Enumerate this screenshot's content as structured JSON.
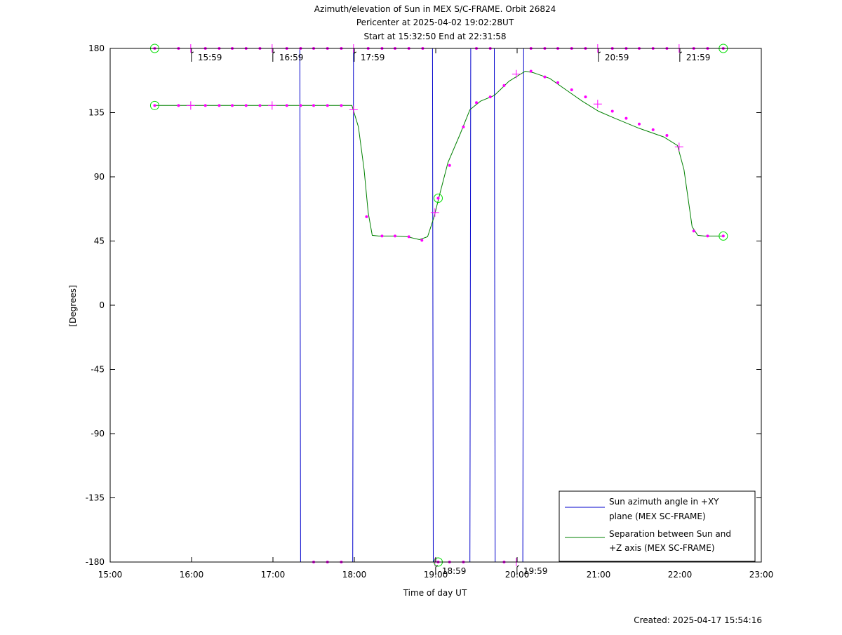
{
  "chart_data": {
    "type": "line",
    "title_lines": [
      "Azimuth/elevation of Sun in MEX S/C-FRAME.  Orbit 26824",
      "Pericenter at 2025-04-02 19:02:28UT",
      "Start at 15:32:50 End at 22:31:58"
    ],
    "xlabel": "Time of day UT",
    "ylabel": "[Degrees]",
    "footer": "Created: 2025-04-17 15:54:16",
    "xlim": [
      15.0,
      23.0
    ],
    "ylim": [
      -180,
      180
    ],
    "x_ticks": [
      {
        "v": 15,
        "label": "15:00"
      },
      {
        "v": 16,
        "label": "16:00"
      },
      {
        "v": 17,
        "label": "17:00"
      },
      {
        "v": 18,
        "label": "18:00"
      },
      {
        "v": 19,
        "label": "19:00"
      },
      {
        "v": 20,
        "label": "20:00"
      },
      {
        "v": 21,
        "label": "21:00"
      },
      {
        "v": 22,
        "label": "22:00"
      },
      {
        "v": 23,
        "label": "23:00"
      }
    ],
    "y_ticks": [
      {
        "v": 180,
        "label": "180"
      },
      {
        "v": 135,
        "label": "135"
      },
      {
        "v": 90,
        "label": "90"
      },
      {
        "v": 45,
        "label": "45"
      },
      {
        "v": 0,
        "label": "0"
      },
      {
        "v": -45,
        "label": "-45"
      },
      {
        "v": -90,
        "label": "-90"
      },
      {
        "v": -135,
        "label": "-135"
      },
      {
        "v": -180,
        "label": "-180"
      }
    ],
    "series": [
      {
        "name": "Sun azimuth angle in +XY plane (MEX SC-FRAME)",
        "legend_lines": [
          "Sun azimuth angle in +XY",
          "plane (MEX SC-FRAME)"
        ],
        "color": "#0000cc",
        "x": [
          15.547,
          17.33,
          17.34,
          17.98,
          17.99,
          18.96,
          18.97,
          19.42,
          19.43,
          19.72,
          19.73,
          20.07,
          20.08,
          22.533
        ],
        "y": [
          180,
          180,
          -180,
          -180,
          180,
          180,
          -180,
          -180,
          180,
          180,
          -180,
          -180,
          180,
          180
        ]
      },
      {
        "name": "Separation between Sun and +Z axis (MEX SC-FRAME)",
        "legend_lines": [
          "Separation between Sun and",
          "+Z axis (MEX SC-FRAME)"
        ],
        "color": "#008000",
        "x": [
          15.547,
          16.0,
          16.5,
          17.0,
          17.5,
          17.97,
          18.05,
          18.12,
          18.17,
          18.22,
          18.3,
          18.5,
          18.65,
          18.8,
          18.9,
          18.98,
          19.05,
          19.15,
          19.3,
          19.42,
          19.55,
          19.72,
          19.9,
          20.1,
          20.2,
          20.4,
          20.6,
          20.8,
          21.0,
          21.2,
          21.5,
          21.8,
          21.97,
          22.05,
          22.1,
          22.15,
          22.22,
          22.3,
          22.533
        ],
        "y": [
          140,
          140,
          140,
          140,
          140,
          140,
          125,
          95,
          65,
          49,
          48.5,
          48.5,
          48,
          46,
          48,
          62,
          78,
          100,
          120,
          137,
          143,
          147,
          157,
          164,
          163,
          159,
          151,
          143,
          136,
          131,
          124,
          118,
          112,
          95,
          75,
          55,
          49,
          48.5,
          48.5
        ]
      }
    ],
    "markers": {
      "dots": [
        [
          15.84,
          180
        ],
        [
          16.17,
          180
        ],
        [
          16.34,
          180
        ],
        [
          16.5,
          180
        ],
        [
          16.67,
          180
        ],
        [
          16.84,
          180
        ],
        [
          17.17,
          180
        ],
        [
          17.34,
          180
        ],
        [
          17.5,
          180
        ],
        [
          17.67,
          180
        ],
        [
          17.84,
          180
        ],
        [
          18.17,
          180
        ],
        [
          18.34,
          180
        ],
        [
          18.5,
          180
        ],
        [
          18.67,
          180
        ],
        [
          18.84,
          180
        ],
        [
          19.5,
          180
        ],
        [
          19.67,
          180
        ],
        [
          20.17,
          180
        ],
        [
          20.34,
          180
        ],
        [
          20.5,
          180
        ],
        [
          20.67,
          180
        ],
        [
          20.84,
          180
        ],
        [
          21.17,
          180
        ],
        [
          21.34,
          180
        ],
        [
          21.5,
          180
        ],
        [
          21.67,
          180
        ],
        [
          21.84,
          180
        ],
        [
          22.17,
          180
        ],
        [
          22.34,
          180
        ],
        [
          15.84,
          140
        ],
        [
          16.17,
          140
        ],
        [
          16.34,
          140
        ],
        [
          16.5,
          140
        ],
        [
          16.67,
          140
        ],
        [
          16.84,
          140
        ],
        [
          17.17,
          140
        ],
        [
          17.34,
          140
        ],
        [
          17.5,
          140
        ],
        [
          17.67,
          140
        ],
        [
          17.84,
          140
        ],
        [
          18.15,
          62
        ],
        [
          18.34,
          48.5
        ],
        [
          18.5,
          48.5
        ],
        [
          18.67,
          48
        ],
        [
          18.83,
          45.5
        ],
        [
          19.17,
          98
        ],
        [
          19.34,
          125
        ],
        [
          19.5,
          142
        ],
        [
          19.67,
          146
        ],
        [
          19.84,
          154
        ],
        [
          20.17,
          164
        ],
        [
          20.34,
          160
        ],
        [
          20.5,
          156
        ],
        [
          20.67,
          151
        ],
        [
          20.84,
          146
        ],
        [
          21.17,
          136
        ],
        [
          21.34,
          131
        ],
        [
          21.5,
          127
        ],
        [
          21.67,
          123
        ],
        [
          21.84,
          119
        ],
        [
          22.17,
          52
        ],
        [
          22.34,
          48.5
        ],
        [
          17.5,
          -180
        ],
        [
          17.67,
          -180
        ],
        [
          17.84,
          -180
        ],
        [
          19.17,
          -180
        ],
        [
          19.34,
          -180
        ],
        [
          19.84,
          -180
        ]
      ],
      "crosses": [
        [
          15.99,
          180
        ],
        [
          16.99,
          180
        ],
        [
          17.99,
          180
        ],
        [
          20.99,
          180
        ],
        [
          21.99,
          180
        ],
        [
          15.99,
          140
        ],
        [
          16.99,
          140
        ],
        [
          17.99,
          137
        ],
        [
          18.99,
          65
        ],
        [
          19.99,
          162
        ],
        [
          20.99,
          141
        ],
        [
          21.99,
          111
        ],
        [
          18.99,
          -180
        ],
        [
          19.99,
          -180
        ]
      ],
      "circles": [
        [
          15.547,
          180
        ],
        [
          22.533,
          180
        ],
        [
          15.547,
          140
        ],
        [
          22.533,
          48.5
        ],
        [
          19.03,
          75
        ],
        [
          19.03,
          -180
        ]
      ],
      "hour_labels": [
        {
          "x": 15.99,
          "y": 180,
          "label": "15:59"
        },
        {
          "x": 16.99,
          "y": 180,
          "label": "16:59"
        },
        {
          "x": 17.99,
          "y": 180,
          "label": "17:59"
        },
        {
          "x": 18.99,
          "y": -180,
          "label": "18:59"
        },
        {
          "x": 19.99,
          "y": -180,
          "label": "19:59"
        },
        {
          "x": 20.99,
          "y": 180,
          "label": "20:59"
        },
        {
          "x": 21.99,
          "y": 180,
          "label": "21:59"
        }
      ]
    },
    "marker_colors": {
      "dot": "#ff00ff",
      "cross": "#ff00ff",
      "circle": "#00dd00"
    },
    "grid": false,
    "legend_position": "bottom-right"
  }
}
